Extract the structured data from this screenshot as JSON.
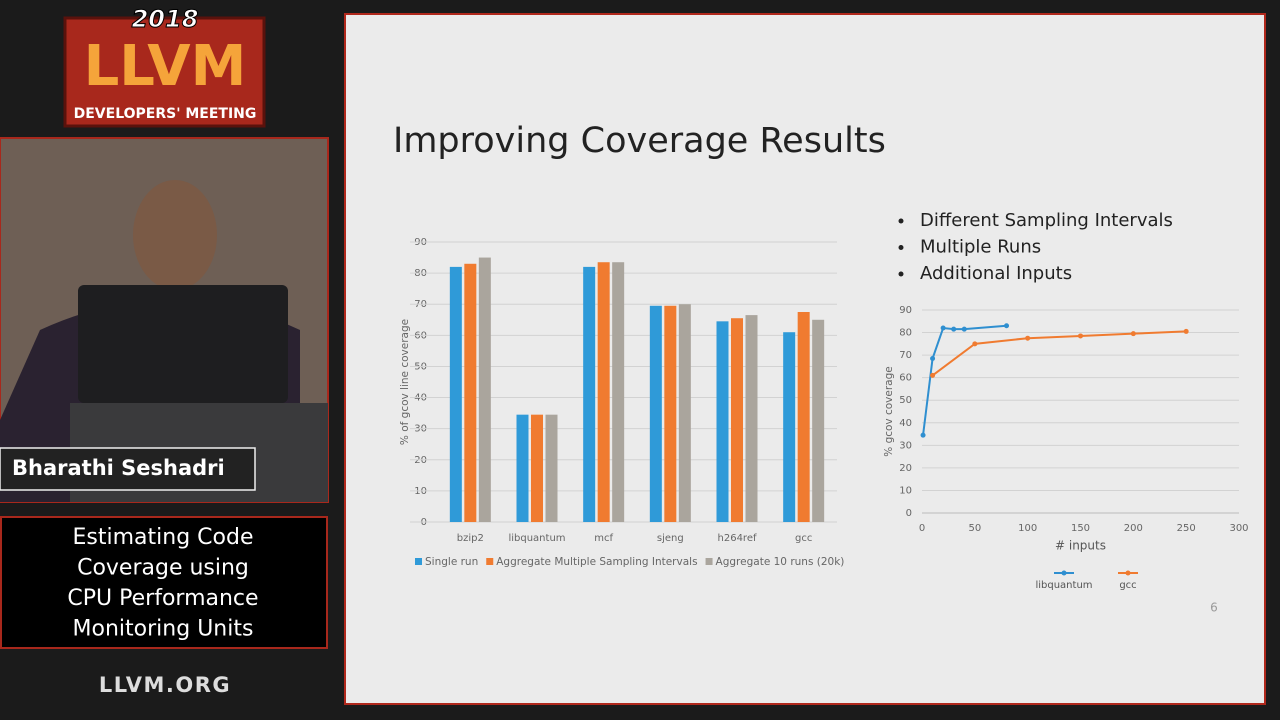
{
  "event": {
    "year": "2018",
    "name": "LLVM",
    "subtitle": "DEVELOPERS' MEETING",
    "site": "LLVM.ORG"
  },
  "speaker": "Bharathi Seshadri",
  "talk_title": [
    "Estimating Code",
    "Coverage using",
    "CPU Performance",
    "Monitoring Units"
  ],
  "slide": {
    "title": "Improving Coverage Results",
    "bullets": [
      "Different Sampling Intervals",
      "Multiple Runs",
      "Additional Inputs"
    ],
    "page_number": 6
  },
  "chart_data": [
    {
      "type": "bar",
      "y_label": "% of gcov line coverage",
      "categories": [
        "bzip2",
        "libquantum",
        "mcf",
        "sjeng",
        "h264ref",
        "gcc"
      ],
      "series": [
        {
          "name": "Single run",
          "color": "#2f9ad8",
          "values": [
            82,
            34.5,
            82,
            69.5,
            64.5,
            61
          ]
        },
        {
          "name": "Aggregate Multiple Sampling Intervals",
          "color": "#f07b30",
          "values": [
            83,
            34.5,
            83.5,
            69.5,
            65.5,
            67.5
          ]
        },
        {
          "name": "Aggregate 10 runs (20k)",
          "color": "#aaa59d",
          "values": [
            85,
            34.5,
            83.5,
            70,
            66.5,
            65
          ]
        }
      ],
      "ylim": [
        0,
        90
      ],
      "yticks": [
        0,
        10,
        20,
        30,
        40,
        50,
        60,
        70,
        80,
        90
      ],
      "grid": true,
      "legend": "bottom"
    },
    {
      "type": "line",
      "x_label": "# inputs",
      "y_label": "% gcov coverage",
      "series": [
        {
          "name": "libquantum",
          "color": "#2f8fd0",
          "x": [
            1,
            10,
            20,
            30,
            40,
            80
          ],
          "values": [
            34.5,
            68.5,
            82,
            81.5,
            81.5,
            83
          ]
        },
        {
          "name": "gcc",
          "color": "#f07b30",
          "x": [
            10,
            50,
            100,
            150,
            200,
            250
          ],
          "values": [
            61,
            75,
            77.5,
            78.5,
            79.5,
            80.5
          ]
        }
      ],
      "xlim": [
        0,
        300
      ],
      "xticks": [
        0,
        50,
        100,
        150,
        200,
        250,
        300
      ],
      "ylim": [
        0,
        90
      ],
      "yticks": [
        0,
        10,
        20,
        30,
        40,
        50,
        60,
        70,
        80,
        90
      ],
      "grid": true,
      "legend": "bottom"
    }
  ]
}
